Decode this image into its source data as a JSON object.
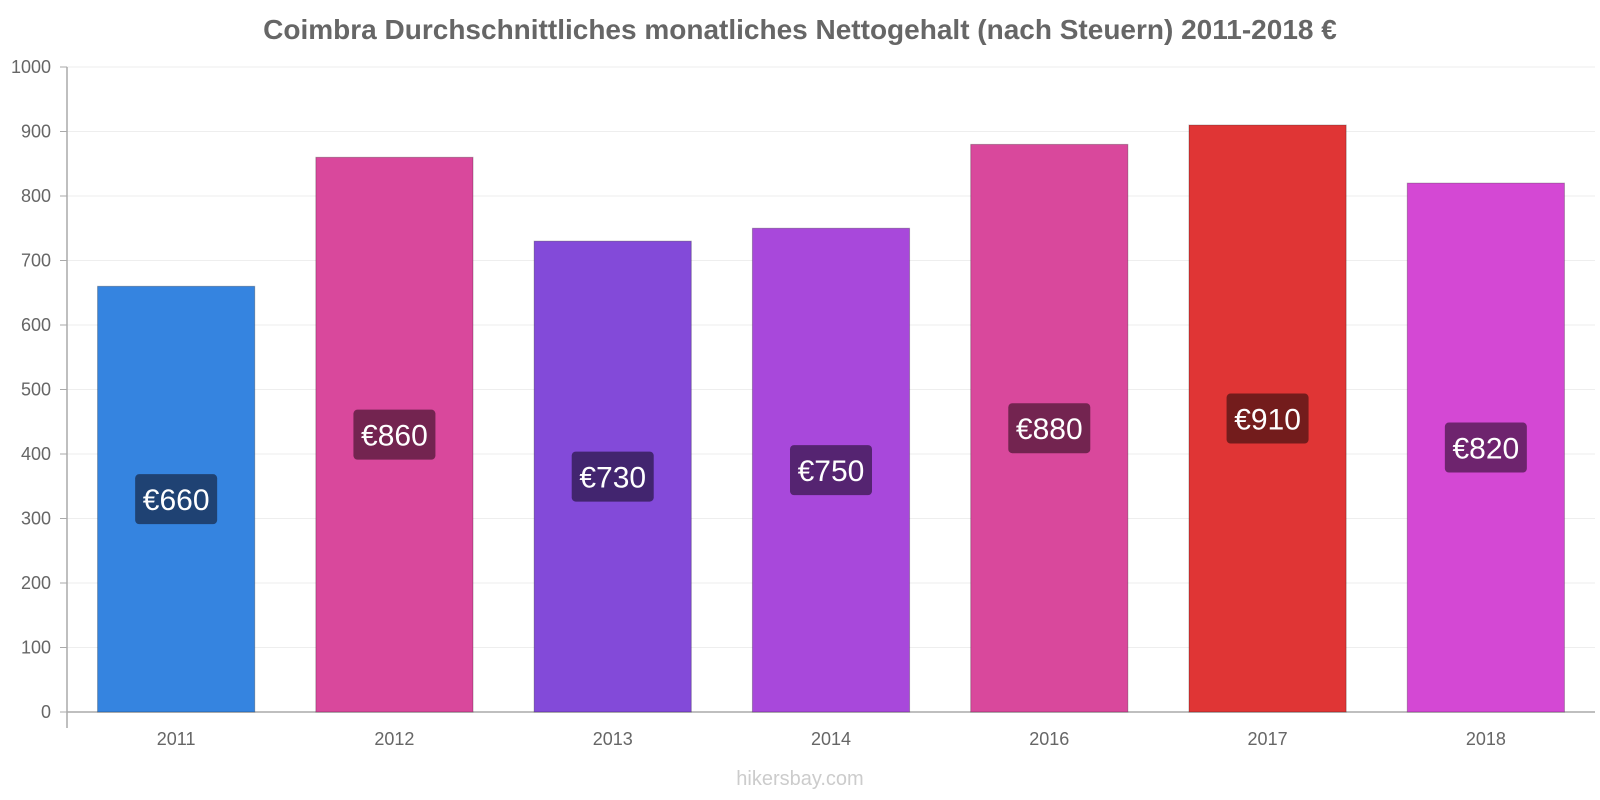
{
  "chart_data": {
    "type": "bar",
    "title": "Coimbra Durchschnittliches monatliches Nettogehalt (nach Steuern) 2011-2018 €",
    "categories": [
      "2011",
      "2012",
      "2013",
      "2014",
      "2016",
      "2017",
      "2018"
    ],
    "values": [
      660,
      860,
      730,
      750,
      880,
      910,
      820
    ],
    "data_labels": [
      "€660",
      "€860",
      "€730",
      "€750",
      "€880",
      "€910",
      "€820"
    ],
    "bar_colors": [
      "#3584e0",
      "#d9489c",
      "#834ad9",
      "#a848db",
      "#d9489c",
      "#e03535",
      "#d448d4"
    ],
    "label_bg_colors": [
      "#1f4273",
      "#732450",
      "#42256f",
      "#552471",
      "#732450",
      "#731c1c",
      "#6e246e"
    ],
    "ylim": [
      0,
      1000
    ],
    "yticks": [
      0,
      100,
      200,
      300,
      400,
      500,
      600,
      700,
      800,
      900,
      1000
    ],
    "xlabel": "",
    "ylabel": "",
    "grid": true,
    "legend": "none"
  },
  "footer": {
    "watermark": "hikersbay.com"
  }
}
